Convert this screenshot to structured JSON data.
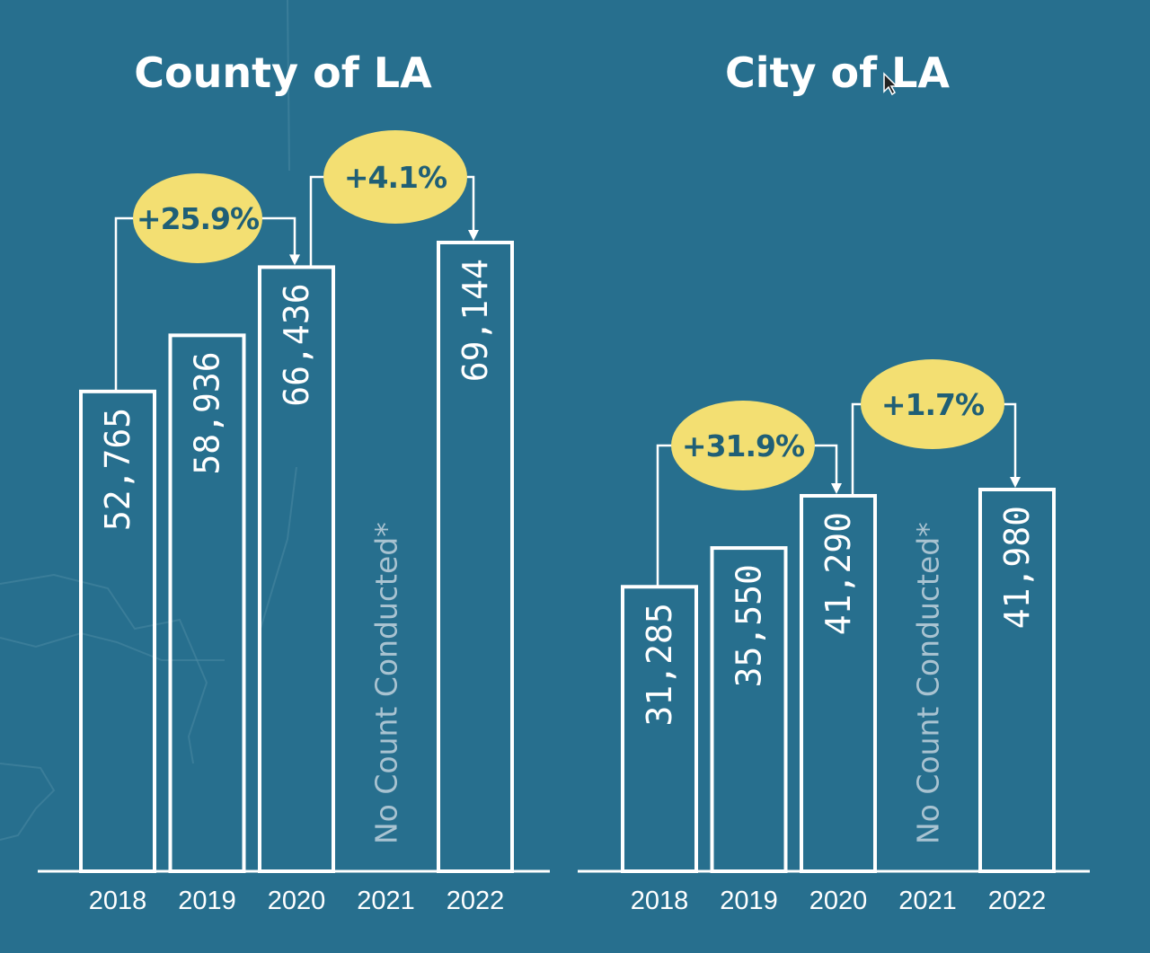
{
  "chart_data": [
    {
      "type": "bar",
      "title": "County of LA",
      "categories": [
        "2018",
        "2019",
        "2020",
        "2021",
        "2022"
      ],
      "values": [
        52765,
        58936,
        66436,
        null,
        69144
      ],
      "value_labels": [
        "52,765",
        "58,936",
        "66,436",
        "No Count Conducted*",
        "69,144"
      ],
      "changes": [
        {
          "from": "2018",
          "to": "2020",
          "label": "+25.9%"
        },
        {
          "from": "2020",
          "to": "2022",
          "label": "+4.1%"
        }
      ],
      "colors": {
        "bars": "#ffffff",
        "bubble": "#f3df72",
        "background": "#276f8e"
      }
    },
    {
      "type": "bar",
      "title": "City of LA",
      "categories": [
        "2018",
        "2019",
        "2020",
        "2021",
        "2022"
      ],
      "values": [
        31285,
        35550,
        41290,
        null,
        41980
      ],
      "value_labels": [
        "31,285",
        "35,550",
        "41,290",
        "No Count Conducted*",
        "41,980"
      ],
      "changes": [
        {
          "from": "2018",
          "to": "2020",
          "label": "+31.9%"
        },
        {
          "from": "2020",
          "to": "2022",
          "label": "+1.7%"
        }
      ],
      "colors": {
        "bars": "#ffffff",
        "bubble": "#f3df72",
        "background": "#276f8e"
      }
    }
  ]
}
